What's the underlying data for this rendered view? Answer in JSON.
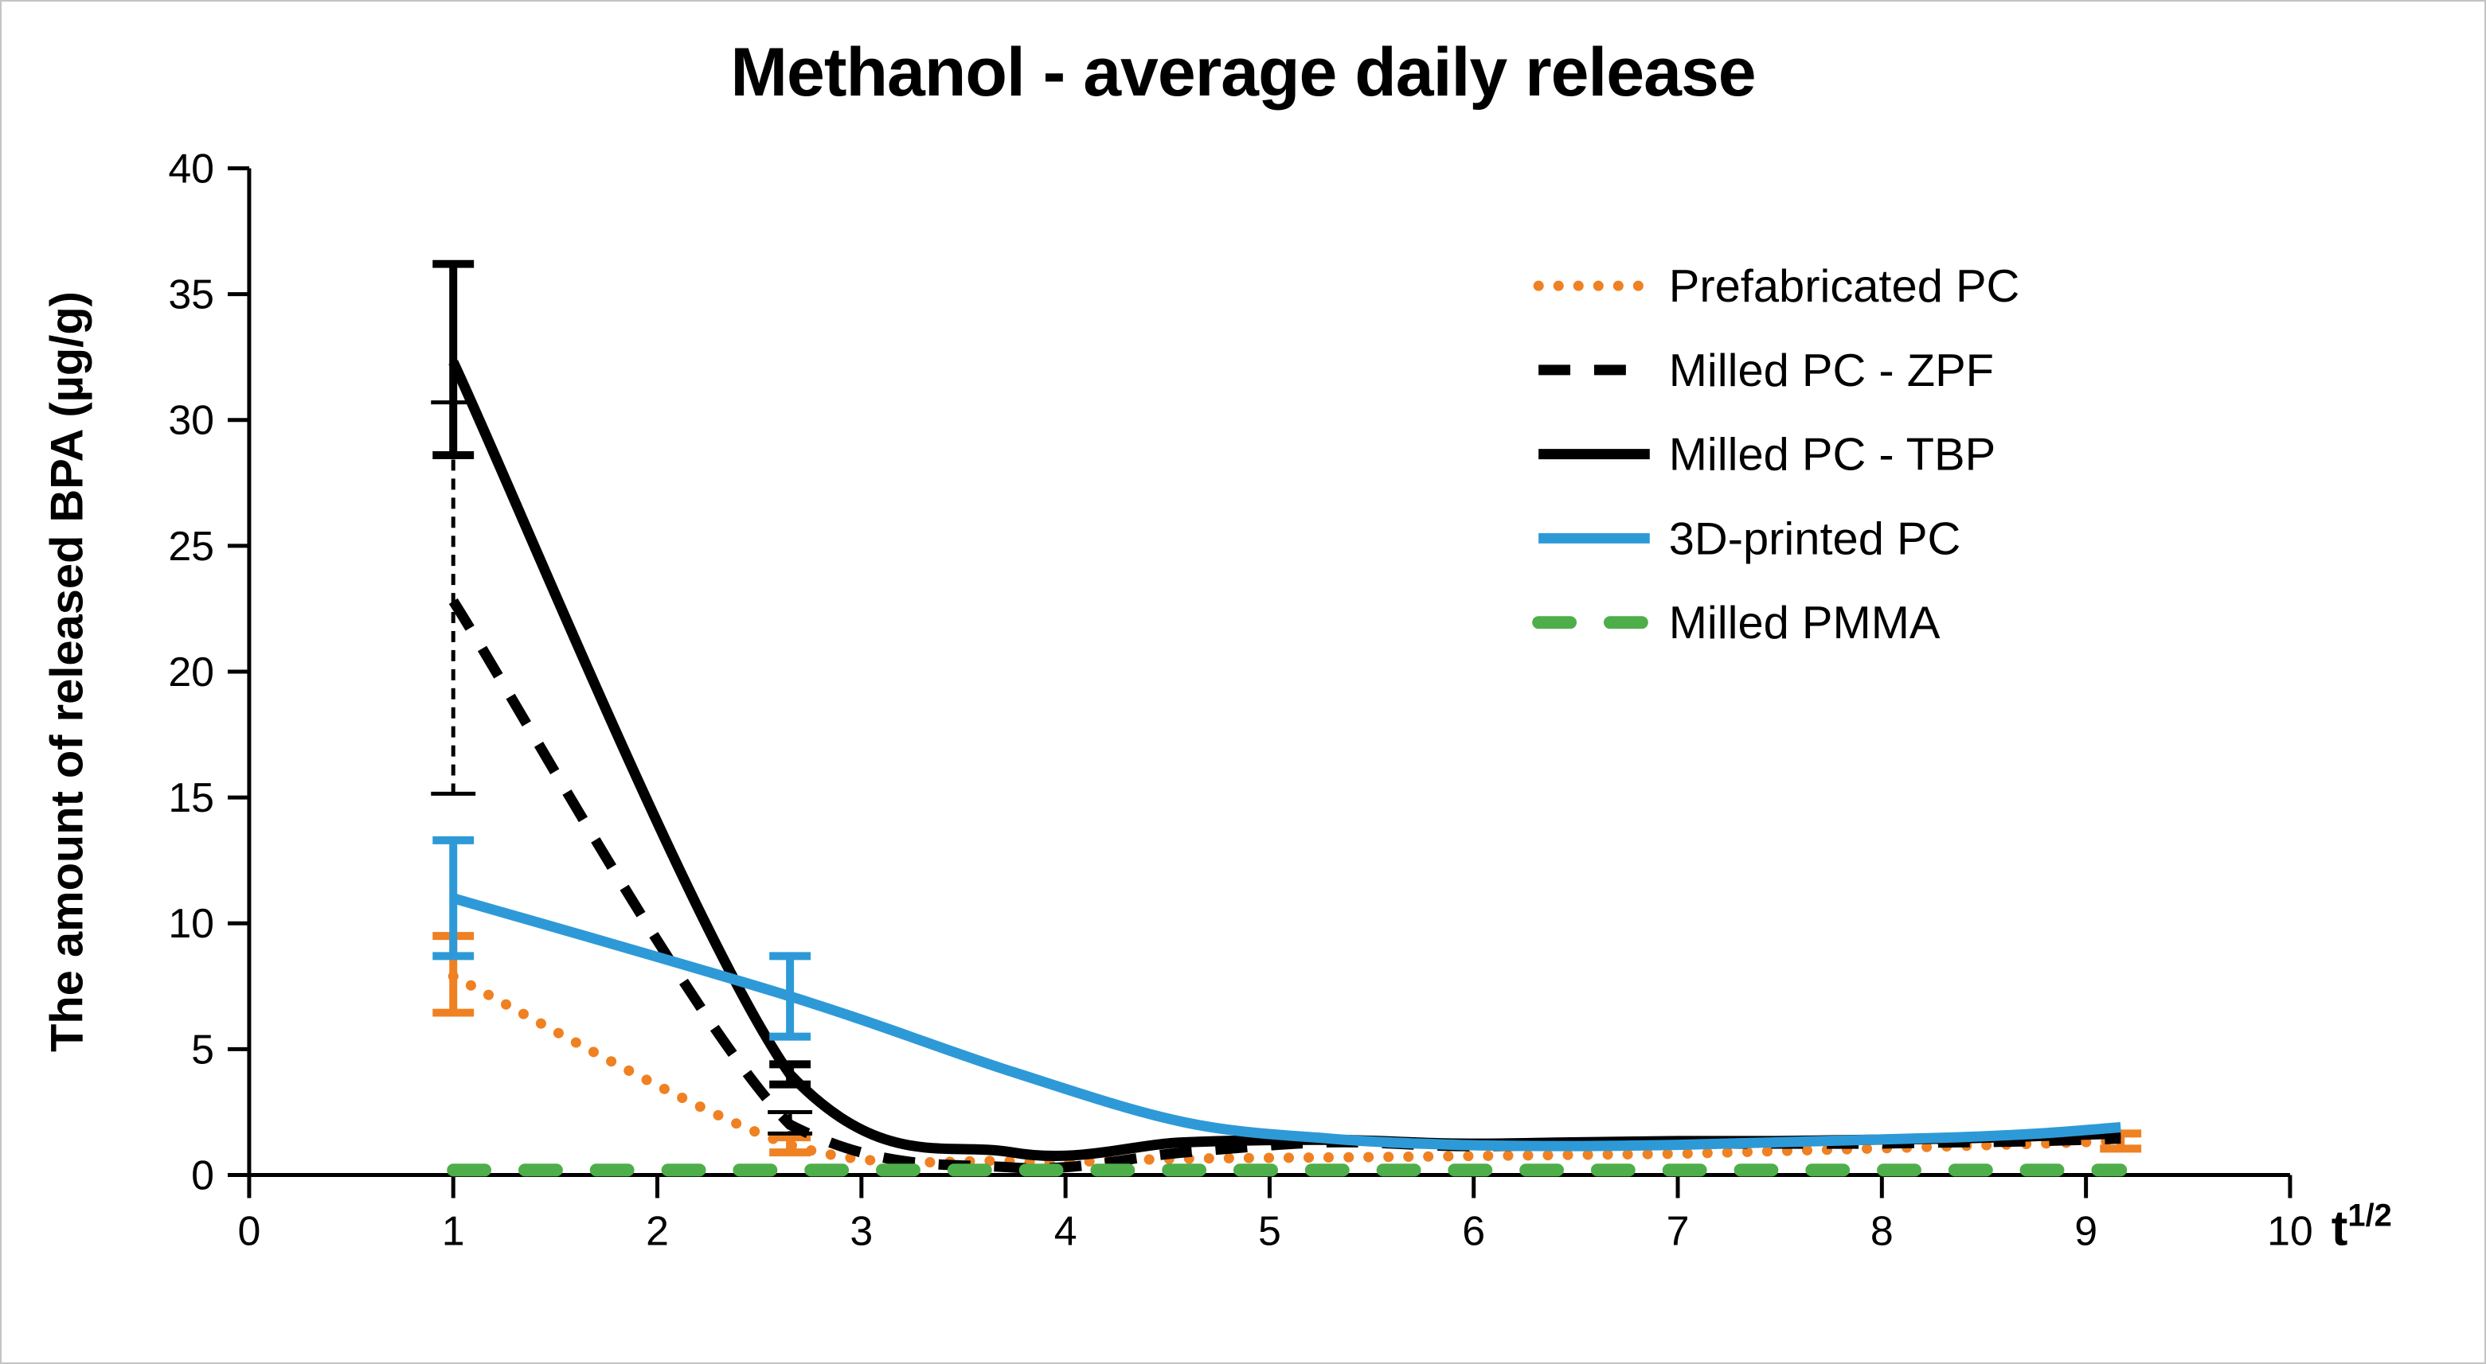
{
  "chart_data": {
    "type": "line",
    "title": "Methanol - average daily release",
    "ylabel": "The amount of released BPA (µg/g)",
    "xlabel": {
      "base": "t",
      "exponent": "1/2"
    },
    "xlim": [
      0,
      10
    ],
    "ylim": [
      0,
      40
    ],
    "xticks": [
      0,
      1,
      2,
      3,
      4,
      5,
      6,
      7,
      8,
      9,
      10
    ],
    "yticks": [
      0,
      5,
      10,
      15,
      20,
      25,
      30,
      35,
      40
    ],
    "grid": false,
    "legend_position": "right-inside",
    "x": [
      1,
      2.65,
      3.74,
      4.58,
      5.29,
      5.92,
      6.48,
      7.0,
      7.48,
      7.94,
      8.37,
      8.77,
      9.17
    ],
    "series": [
      {
        "name": "Prefabricated PC",
        "color": "#ef8122",
        "style": "dotted",
        "values": [
          7.9,
          1.2,
          0.55,
          0.65,
          0.7,
          0.75,
          0.8,
          0.85,
          0.95,
          1.05,
          1.15,
          1.25,
          1.35
        ],
        "error_bars": [
          {
            "x": 1,
            "y": 7.9,
            "plus": 1.6,
            "minus": 1.45
          },
          {
            "x": 2.65,
            "y": 1.2,
            "plus": 0.3,
            "minus": 0.3
          },
          {
            "x": 9.17,
            "y": 1.35,
            "plus": 0.3,
            "minus": 0.3
          }
        ]
      },
      {
        "name": "Milled PC - ZPF",
        "color": "#000000",
        "style": "dashed",
        "values": [
          22.8,
          2.0,
          0.3,
          0.9,
          1.3,
          1.15,
          1.2,
          1.25,
          1.25,
          1.25,
          1.3,
          1.35,
          1.45
        ],
        "error_bars": [
          {
            "x": 1,
            "y": 22.8,
            "plus": 7.9,
            "minus": 7.65,
            "style": "dashed"
          },
          {
            "x": 2.65,
            "y": 2.0,
            "plus": 0.5,
            "minus": 0.35,
            "style": "dashed"
          }
        ]
      },
      {
        "name": "Milled PC - TBP",
        "color": "#000000",
        "style": "solid",
        "values": [
          32.3,
          4.0,
          0.9,
          1.3,
          1.4,
          1.25,
          1.3,
          1.35,
          1.35,
          1.4,
          1.45,
          1.55,
          1.65
        ],
        "error_bars": [
          {
            "x": 1,
            "y": 32.3,
            "plus": 3.9,
            "minus": 3.7
          },
          {
            "x": 2.65,
            "y": 4.0,
            "plus": 0.4,
            "minus": 0.4
          }
        ]
      },
      {
        "name": "3D-printed PC",
        "color": "#2d9ad7",
        "style": "solid",
        "values": [
          11.0,
          7.1,
          4.1,
          2.1,
          1.45,
          1.2,
          1.15,
          1.2,
          1.3,
          1.4,
          1.5,
          1.65,
          1.9
        ],
        "error_bars": [
          {
            "x": 1,
            "y": 11.0,
            "plus": 2.3,
            "minus": 2.3
          },
          {
            "x": 2.65,
            "y": 7.1,
            "plus": 1.6,
            "minus": 1.6
          }
        ]
      },
      {
        "name": "Milled PMMA",
        "color": "#4eae4a",
        "style": "long-dash",
        "values": [
          0.2,
          0.2,
          0.2,
          0.2,
          0.2,
          0.2,
          0.2,
          0.2,
          0.2,
          0.2,
          0.2,
          0.2,
          0.2
        ],
        "error_bars": []
      }
    ]
  }
}
